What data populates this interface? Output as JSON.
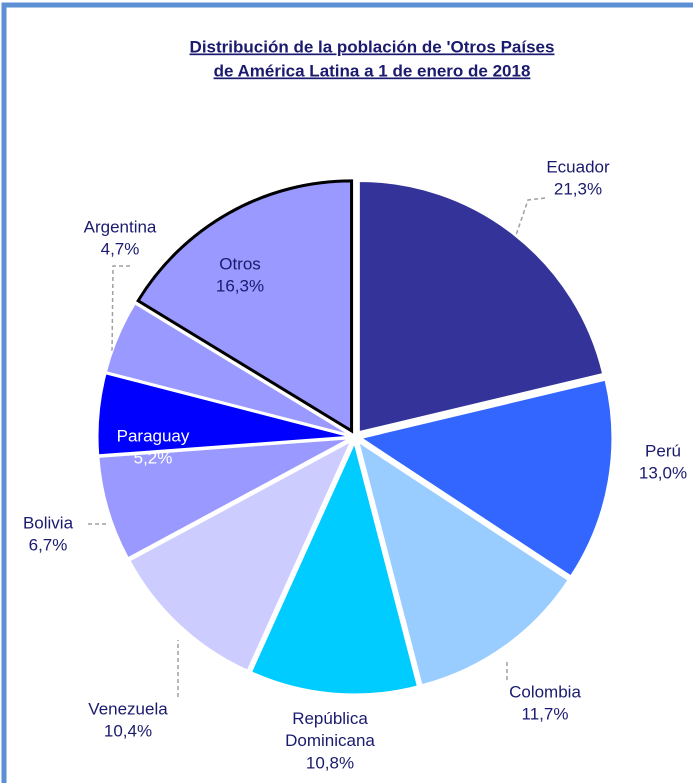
{
  "chart_data": {
    "type": "pie",
    "title": [
      "Distribución de la población de 'Otros Países",
      "de América Latina a 1 de enero de 2018"
    ],
    "categories": [
      "Ecuador",
      "Perú",
      "Colombia",
      "República Dominicana",
      "Venezuela",
      "Bolivia",
      "Paraguay",
      "Argentina",
      "Otros"
    ],
    "values": [
      21.3,
      13.0,
      11.7,
      10.8,
      10.4,
      6.7,
      5.2,
      4.7,
      16.3
    ],
    "value_labels": [
      "21,3%",
      "13,0%",
      "11,7%",
      "10,8%",
      "10,4%",
      "6,7%",
      "5,2%",
      "4,7%",
      "16,3%"
    ],
    "colors": [
      "#333399",
      "#3366ff",
      "#99ccff",
      "#00ccff",
      "#ccccff",
      "#9999ff",
      "#0000ff",
      "#9999ff",
      "#9999ff"
    ]
  }
}
